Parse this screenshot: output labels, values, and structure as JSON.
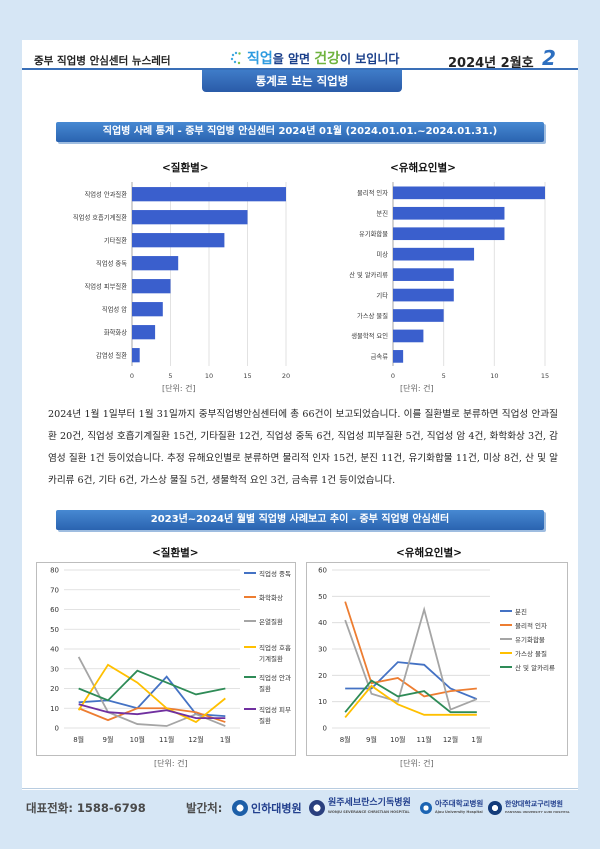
{
  "header": {
    "left": "중부 직업병 안심센터 뉴스레터",
    "slogan_a": "직업",
    "slogan_b": "을 알면 ",
    "slogan_c": "건강",
    "slogan_d": "이 보입니다",
    "issue": "2024년 2월호",
    "page": "2"
  },
  "section_tag": "통계로 보는 직업병",
  "block1": {
    "title": "직업병 사례 통계 - 중부 직업병 안심센터  2024년 01월 (2024.01.01.~2024.01.31.)",
    "chart_left_title": "<질환별>",
    "chart_right_title": "<유해요인별>",
    "unit": "[단위: 건]"
  },
  "paragraph": "2024년 1월 1일부터 1월 31일까지 중부직업병안심센터에 총 66건이 보고되었습니다. 이를 질환별로 분류하면 직업성 안과질환 20건, 직업성 호흡기계질환 15건, 기타질환 12건, 직업성 중독 6건, 직업성 피부질환 5건, 직업성 암 4건, 화학화상 3건, 감염성 질환 1건 등이었습니다. 추정 유해요인별로 분류하면 물리적 인자 15건, 분진 11건, 유기화합물 11건, 미상 8건, 산 및 알카리류 6건, 기타 6건, 가스상 물질 5건, 생물학적 요인 3건, 금속류 1건 등이었습니다.",
  "block2": {
    "title": "2023년~2024년 월별 직업병 사례보고 추이 - 중부 직업병 안심센터",
    "chart_left_title": "<질환별>",
    "chart_right_title": "<유해요인별>",
    "unit": "[단위: 건]"
  },
  "footer": {
    "phone": "대표전화:  1588-6798",
    "publisher": "발간처:",
    "orgs": [
      "인하대병원",
      "원주세브란스기독병원",
      "아주대학교병원",
      "한양대학교구리병원"
    ],
    "org_sub": [
      "WONJU SEVERANCE CHRISTIAN HOSPITAL",
      "Ajou University Hospital",
      "HANYANG UNIVERSITY GURI HOSPITAL"
    ]
  },
  "colors": {
    "accent": "#2d6fc0",
    "bar": "#3a5fcd"
  },
  "chart_data": [
    {
      "type": "bar",
      "orientation": "horizontal",
      "title": "<질환별>",
      "categories": [
        "직업성 안과질환",
        "직업성 호흡기계질환",
        "기타질환",
        "직업성 중독",
        "직업성 피부질환",
        "직업성 암",
        "화학화상",
        "감염성 질환"
      ],
      "values": [
        20,
        15,
        12,
        6,
        5,
        4,
        3,
        1
      ],
      "xlim": [
        0,
        20
      ],
      "xticks": [
        0,
        5,
        10,
        15,
        20
      ],
      "xlabel": "[단위: 건]"
    },
    {
      "type": "bar",
      "orientation": "horizontal",
      "title": "<유해요인별>",
      "categories": [
        "물리적 인자",
        "분진",
        "유기화합물",
        "미상",
        "산 및 알카리류",
        "기타",
        "가스상 물질",
        "생물학적 요인",
        "금속류"
      ],
      "values": [
        15,
        11,
        11,
        8,
        6,
        6,
        5,
        3,
        1
      ],
      "xlim": [
        0,
        15
      ],
      "xticks": [
        0,
        5,
        10,
        15
      ],
      "xlabel": "[단위: 건]"
    },
    {
      "type": "line",
      "title": "<질환별>",
      "categories": [
        "8월",
        "9월",
        "10월",
        "11월",
        "12월",
        "1월"
      ],
      "ylim": [
        0,
        80
      ],
      "yticks": [
        0,
        10,
        20,
        30,
        40,
        50,
        60,
        70,
        80
      ],
      "xlabel": "[단위: 건]",
      "legend": "right",
      "series": [
        {
          "name": "직업성 중독",
          "color": "#4472c4",
          "values": [
            13,
            14,
            10,
            26,
            7,
            6
          ]
        },
        {
          "name": "화학화상",
          "color": "#ed7d31",
          "values": [
            10,
            4,
            10,
            10,
            8,
            3
          ]
        },
        {
          "name": "은열질환",
          "color": "#a5a5a5",
          "values": [
            36,
            8,
            2,
            1,
            7,
            1
          ]
        },
        {
          "name": "직업성 호흡기계질환",
          "color": "#ffc000",
          "values": [
            9,
            32,
            23,
            10,
            3,
            15
          ]
        },
        {
          "name": "직업성 안과질환",
          "color": "#2e8b57",
          "values": [
            20,
            14,
            29,
            23,
            17,
            20
          ]
        },
        {
          "name": "직업성 피부질환",
          "color": "#7030a0",
          "values": [
            12,
            8,
            7,
            9,
            5,
            5
          ]
        }
      ]
    },
    {
      "type": "line",
      "title": "<유해요인별>",
      "categories": [
        "8월",
        "9월",
        "10월",
        "11월",
        "12월",
        "1월"
      ],
      "ylim": [
        0,
        60
      ],
      "yticks": [
        0,
        10,
        20,
        30,
        40,
        50,
        60
      ],
      "xlabel": "[단위: 건]",
      "legend": "right",
      "series": [
        {
          "name": "분진",
          "color": "#4472c4",
          "values": [
            15,
            15,
            25,
            24,
            15,
            11
          ]
        },
        {
          "name": "물리적 인자",
          "color": "#ed7d31",
          "values": [
            48,
            17,
            19,
            12,
            14,
            15
          ]
        },
        {
          "name": "유기화합물",
          "color": "#a5a5a5",
          "values": [
            41,
            13,
            10,
            45,
            7,
            11
          ]
        },
        {
          "name": "가스상 물질",
          "color": "#ffc000",
          "values": [
            4,
            16,
            9,
            5,
            5,
            5
          ]
        },
        {
          "name": "산 및 알카리류",
          "color": "#2e8b57",
          "values": [
            6,
            18,
            12,
            14,
            6,
            6
          ]
        }
      ]
    }
  ]
}
